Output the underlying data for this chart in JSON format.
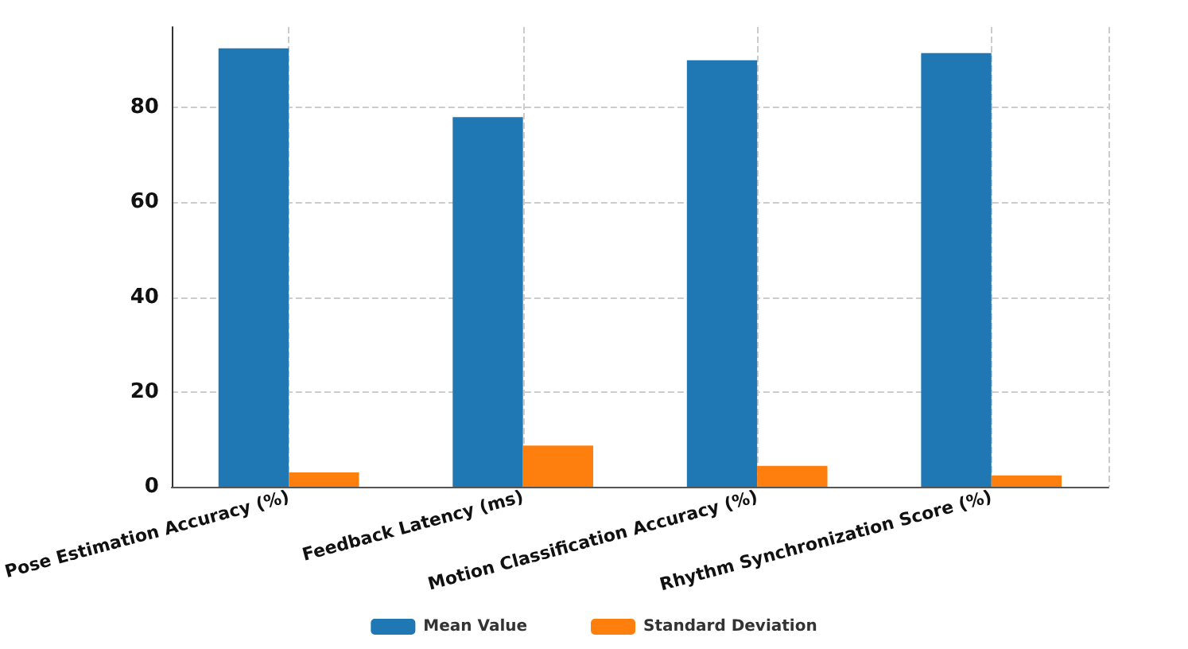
{
  "chart_data": {
    "type": "bar",
    "categories": [
      "Pose Estimation Accuracy (%)",
      "Feedback Latency (ms)",
      "Motion Classification Accuracy (%)",
      "Rhythm Synchronization Score (%)"
    ],
    "series": [
      {
        "name": "Mean Value",
        "color": "#1f77b4",
        "values": [
          92.5,
          78,
          90,
          91.5
        ]
      },
      {
        "name": "Standard Deviation",
        "color": "#ff7f0e",
        "values": [
          3,
          8.7,
          4.4,
          2.4
        ]
      }
    ],
    "ylim": [
      0,
      97
    ],
    "yticks": [
      0,
      20,
      40,
      60,
      80
    ],
    "grid": true,
    "legend": "bottom"
  }
}
